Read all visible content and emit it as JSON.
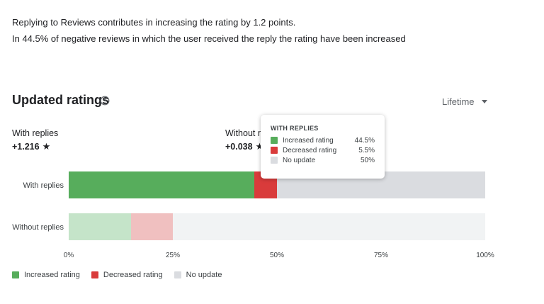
{
  "intro": {
    "line1": "Replying to Reviews contributes in increasing the rating by 1.2 points.",
    "line2": "In 44.5% of negative reviews in which the user received the reply the rating have been increased"
  },
  "card": {
    "title": "Updated ratings",
    "help_icon": "help-circle-icon",
    "period_select": "Lifetime"
  },
  "stats": [
    {
      "label": "With replies",
      "value": "+1.216"
    },
    {
      "label": "Without r",
      "value": "+0.038"
    }
  ],
  "colors": {
    "increased": "#57ad5c",
    "decreased": "#d93b3b",
    "no_update": "#dadce0",
    "increased_light": "#c5e4c9",
    "decreased_light": "#f0c0c0",
    "no_update_light": "#f1f3f4"
  },
  "chart_data": {
    "type": "bar",
    "orientation": "horizontal",
    "stacked": true,
    "categories": [
      "With replies",
      "Without replies"
    ],
    "series": [
      {
        "name": "Increased rating",
        "values": [
          44.5,
          15
        ]
      },
      {
        "name": "Decreased rating",
        "values": [
          5.5,
          10
        ]
      },
      {
        "name": "No update",
        "values": [
          50,
          75
        ]
      }
    ],
    "x_ticks": [
      "0%",
      "25%",
      "50%",
      "75%",
      "100%"
    ],
    "xlim": [
      0,
      100
    ],
    "legend_position": "bottom-left"
  },
  "tooltip": {
    "title": "WITH REPLIES",
    "rows": [
      {
        "label": "Increased rating",
        "value": "44.5%"
      },
      {
        "label": "Decreased rating",
        "value": "5.5%"
      },
      {
        "label": "No update",
        "value": "50%"
      }
    ]
  }
}
